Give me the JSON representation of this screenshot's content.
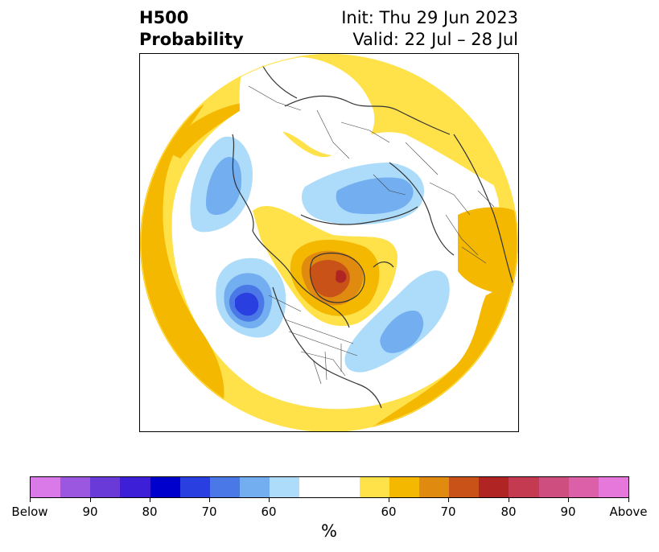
{
  "title": {
    "left_line1": "H500",
    "left_line2": "Probability",
    "right_line1": "Init: Thu 29 Jun 2023",
    "right_line2": "Valid: 22 Jul – 28 Jul"
  },
  "colorbar": {
    "unit": "%",
    "tick_labels": [
      "Below",
      "90",
      "80",
      "70",
      "60",
      "60",
      "70",
      "80",
      "90",
      "Above"
    ],
    "colors": [
      "#d97ae8",
      "#9b57e0",
      "#6a3ad8",
      "#3c1fd6",
      "#0000cc",
      "#2a3fe0",
      "#4a78e6",
      "#72aef0",
      "#addcfa",
      "#ffffff",
      "#ffe14a",
      "#f5b800",
      "#e08a10",
      "#c85218",
      "#b02424",
      "#c43a50",
      "#cf4e80",
      "#dc60a8",
      "#e678dc"
    ]
  },
  "map": {
    "projection": "north-polar-stereographic",
    "legend_colors": {
      "below_60": "#addcfa",
      "below_70": "#72aef0",
      "below_80": "#4a78e6",
      "below_90": "#2a3fe0",
      "above_60": "#ffe14a",
      "above_70": "#f5b800",
      "above_80": "#e08a10",
      "above_90": "#c85218",
      "above_100": "#b02424"
    }
  }
}
